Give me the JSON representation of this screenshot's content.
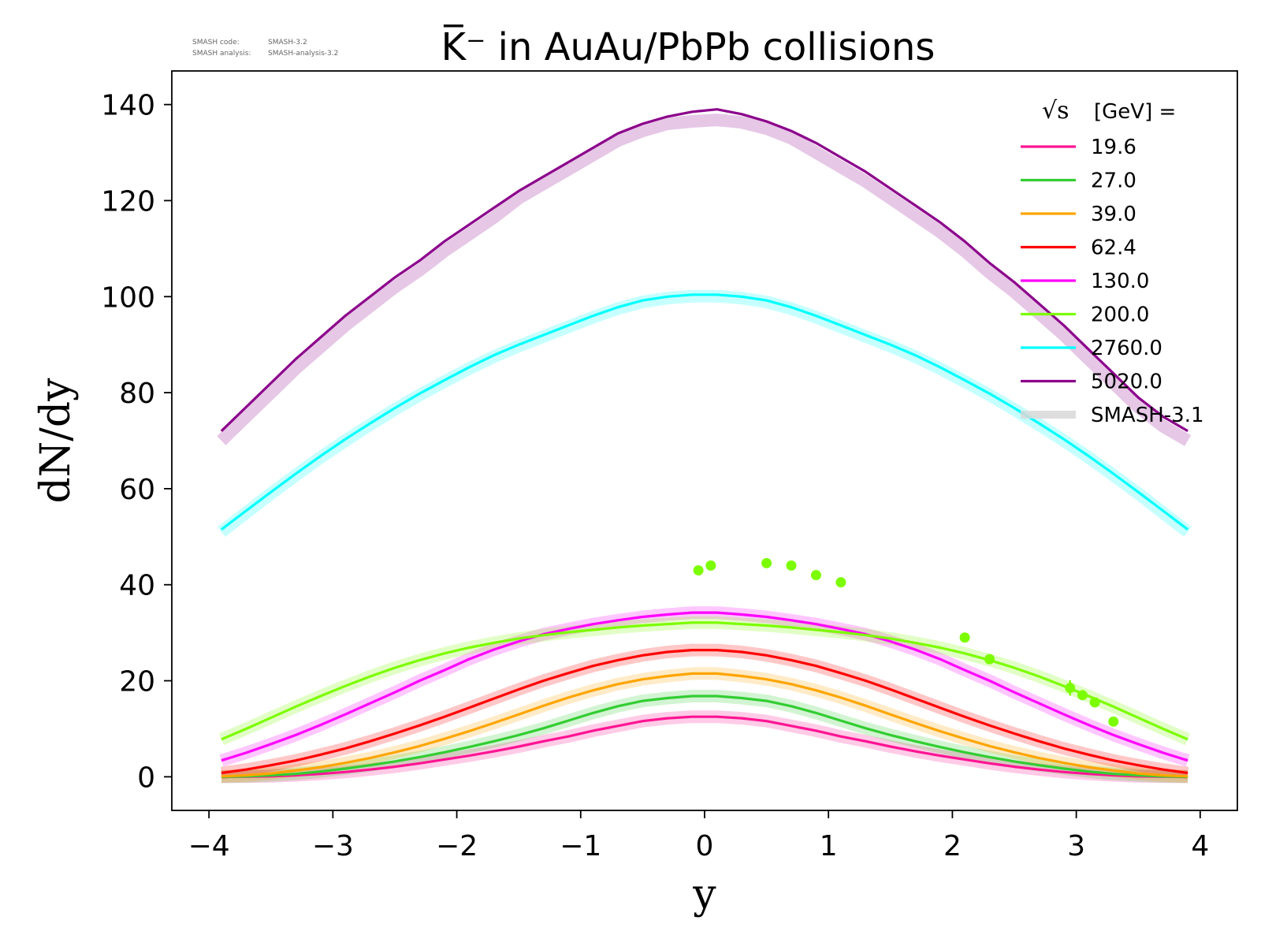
{
  "meta": {
    "code_label": "SMASH code:",
    "code_value": "SMASH-3.2",
    "analysis_label": "SMASH analysis:",
    "analysis_value": "SMASH-analysis-3.2"
  },
  "chart_data": {
    "type": "line",
    "title": "K̅⁻ in AuAu/PbPb collisions",
    "xlabel": "y",
    "ylabel": "dN/dy",
    "xlim": [
      -4.3,
      4.3
    ],
    "ylim": [
      -7,
      147
    ],
    "x_ticks": [
      -4,
      -3,
      -2,
      -1,
      0,
      1,
      2,
      3,
      4
    ],
    "x_tick_labels": [
      "−4",
      "−3",
      "−2",
      "−1",
      "0",
      "1",
      "2",
      "3",
      "4"
    ],
    "y_ticks": [
      0,
      20,
      40,
      60,
      80,
      100,
      120,
      140
    ],
    "y_tick_labels": [
      "0",
      "20",
      "40",
      "60",
      "80",
      "100",
      "120",
      "140"
    ],
    "grid": false,
    "legend_position": "top-right",
    "legend_title": "[GeV] =",
    "legend_title_symbol": "√s",
    "x": [
      -3.9,
      -3.7,
      -3.5,
      -3.3,
      -3.1,
      -2.9,
      -2.7,
      -2.5,
      -2.3,
      -2.1,
      -1.9,
      -1.7,
      -1.5,
      -1.3,
      -1.1,
      -0.9,
      -0.7,
      -0.5,
      -0.3,
      -0.1,
      0.1,
      0.3,
      0.5,
      0.7,
      0.9,
      1.1,
      1.3,
      1.5,
      1.7,
      1.9,
      2.1,
      2.3,
      2.5,
      2.7,
      2.9,
      3.1,
      3.3,
      3.5,
      3.7,
      3.9
    ],
    "series": [
      {
        "name": "19.6",
        "color": "#ff1493",
        "values": [
          0.0,
          0.05,
          0.1,
          0.3,
          0.6,
          1.0,
          1.5,
          2.1,
          2.8,
          3.6,
          4.4,
          5.3,
          6.3,
          7.4,
          8.4,
          9.6,
          10.6,
          11.6,
          12.2,
          12.5,
          12.5,
          12.2,
          11.6,
          10.6,
          9.6,
          8.4,
          7.4,
          6.3,
          5.3,
          4.4,
          3.6,
          2.8,
          2.1,
          1.5,
          1.0,
          0.6,
          0.3,
          0.1,
          0.05,
          0.0
        ]
      },
      {
        "name": "27.0",
        "color": "#32cd32",
        "values": [
          0.0,
          0.1,
          0.3,
          0.6,
          1.1,
          1.7,
          2.4,
          3.2,
          4.1,
          5.1,
          6.2,
          7.4,
          8.7,
          10.1,
          11.7,
          13.3,
          14.7,
          15.8,
          16.4,
          16.8,
          16.8,
          16.4,
          15.8,
          14.7,
          13.3,
          11.7,
          10.1,
          8.7,
          7.4,
          6.2,
          5.1,
          4.1,
          3.2,
          2.4,
          1.7,
          1.1,
          0.6,
          0.3,
          0.1,
          0.0
        ]
      },
      {
        "name": "39.0",
        "color": "#ffa500",
        "values": [
          0.1,
          0.3,
          0.7,
          1.3,
          2.0,
          2.9,
          3.9,
          5.1,
          6.4,
          7.9,
          9.5,
          11.2,
          13.0,
          14.8,
          16.5,
          18.0,
          19.3,
          20.3,
          21.0,
          21.5,
          21.5,
          21.0,
          20.3,
          19.3,
          18.0,
          16.5,
          14.8,
          13.0,
          11.2,
          9.5,
          7.9,
          6.4,
          5.1,
          3.9,
          2.9,
          2.0,
          1.3,
          0.7,
          0.3,
          0.1
        ]
      },
      {
        "name": "62.4",
        "color": "#ff0000",
        "values": [
          0.8,
          1.5,
          2.4,
          3.4,
          4.6,
          5.9,
          7.4,
          9.0,
          10.7,
          12.5,
          14.4,
          16.3,
          18.2,
          20.0,
          21.6,
          23.1,
          24.3,
          25.3,
          26.0,
          26.4,
          26.4,
          26.0,
          25.3,
          24.3,
          23.1,
          21.6,
          20.0,
          18.2,
          16.3,
          14.4,
          12.5,
          10.7,
          9.0,
          7.4,
          5.9,
          4.6,
          3.4,
          2.4,
          1.5,
          0.8
        ]
      },
      {
        "name": "130.0",
        "color": "#ff00ff",
        "values": [
          3.4,
          5.0,
          6.8,
          8.7,
          10.8,
          13.0,
          15.3,
          17.6,
          20.0,
          22.2,
          24.5,
          26.5,
          28.2,
          29.7,
          30.8,
          31.8,
          32.6,
          33.3,
          33.8,
          34.2,
          34.2,
          33.8,
          33.3,
          32.6,
          31.8,
          30.8,
          29.7,
          28.2,
          26.5,
          24.5,
          22.2,
          20.0,
          17.6,
          15.3,
          13.0,
          10.8,
          8.7,
          6.8,
          5.0,
          3.4
        ]
      },
      {
        "name": "200.0",
        "color": "#7cfc00",
        "values": [
          7.8,
          10.0,
          12.3,
          14.6,
          16.8,
          18.9,
          20.9,
          22.7,
          24.3,
          25.7,
          26.9,
          27.9,
          28.8,
          29.5,
          30.1,
          30.6,
          31.1,
          31.5,
          31.8,
          32.1,
          32.1,
          31.8,
          31.5,
          31.1,
          30.6,
          30.1,
          29.5,
          28.8,
          27.9,
          26.9,
          25.7,
          24.3,
          22.7,
          20.9,
          18.9,
          16.8,
          14.6,
          12.3,
          10.0,
          7.8
        ]
      },
      {
        "name": "2760.0",
        "color": "#00ffff",
        "values": [
          51.5,
          55.4,
          59.3,
          63.1,
          66.8,
          70.3,
          73.6,
          76.8,
          79.8,
          82.6,
          85.3,
          87.8,
          90.0,
          92.0,
          94.0,
          96.0,
          97.8,
          99.2,
          100.0,
          100.4,
          100.4,
          100.0,
          99.2,
          97.8,
          96.0,
          94.0,
          92.0,
          90.0,
          87.8,
          85.3,
          82.6,
          79.8,
          76.8,
          73.6,
          70.3,
          66.8,
          63.1,
          59.3,
          55.4,
          51.5
        ]
      },
      {
        "name": "5020.0",
        "color": "#8b008b",
        "values": [
          72.0,
          77.0,
          82.0,
          87.0,
          91.5,
          96.0,
          100.0,
          104.0,
          107.5,
          111.5,
          115.0,
          118.5,
          122.0,
          125.0,
          128.0,
          131.0,
          134.0,
          136.0,
          137.5,
          138.5,
          139.0,
          138.0,
          136.5,
          134.5,
          132.0,
          129.0,
          126.0,
          122.5,
          119.0,
          115.5,
          111.5,
          107.0,
          103.0,
          98.5,
          94.0,
          89.0,
          84.0,
          79.0,
          75.0,
          72.0
        ]
      },
      {
        "name": "SMASH-3.1",
        "color": "#d8d8d8",
        "role": "reference",
        "bands": [
          {
            "values": [
              0.0,
              0.05,
              0.1,
              0.3,
              0.6,
              1.0,
              1.5,
              2.1,
              2.8,
              3.6,
              4.4,
              5.3,
              6.3,
              7.4,
              8.4,
              9.6,
              10.6,
              11.6,
              12.2,
              12.5,
              12.5,
              12.2,
              11.6,
              10.6,
              9.6,
              8.4,
              7.4,
              6.3,
              5.3,
              4.4,
              3.6,
              2.8,
              2.1,
              1.5,
              1.0,
              0.6,
              0.3,
              0.1,
              0.05,
              0.0
            ],
            "tint": "#ff1493"
          },
          {
            "values": [
              0.0,
              0.1,
              0.3,
              0.6,
              1.1,
              1.7,
              2.4,
              3.2,
              4.1,
              5.1,
              6.2,
              7.4,
              8.7,
              10.1,
              11.7,
              13.3,
              14.7,
              15.8,
              16.4,
              16.8,
              16.8,
              16.4,
              15.8,
              14.7,
              13.3,
              11.7,
              10.1,
              8.7,
              7.4,
              6.2,
              5.1,
              4.1,
              3.2,
              2.4,
              1.7,
              1.1,
              0.6,
              0.3,
              0.1,
              0.0
            ],
            "tint": "#32cd32"
          },
          {
            "values": [
              0.1,
              0.3,
              0.7,
              1.3,
              2.0,
              2.9,
              3.9,
              5.1,
              6.4,
              7.9,
              9.5,
              11.2,
              13.0,
              14.8,
              16.5,
              18.0,
              19.3,
              20.3,
              21.0,
              21.5,
              21.5,
              21.0,
              20.3,
              19.3,
              18.0,
              16.5,
              14.8,
              13.0,
              11.2,
              9.5,
              7.9,
              6.4,
              5.1,
              3.9,
              2.9,
              2.0,
              1.3,
              0.7,
              0.3,
              0.1
            ],
            "tint": "#ffa500"
          },
          {
            "values": [
              0.8,
              1.5,
              2.4,
              3.4,
              4.6,
              5.9,
              7.4,
              9.0,
              10.7,
              12.5,
              14.4,
              16.3,
              18.2,
              20.0,
              21.6,
              23.1,
              24.3,
              25.3,
              26.0,
              26.4,
              26.4,
              26.0,
              25.3,
              24.3,
              23.1,
              21.6,
              20.0,
              18.2,
              16.3,
              14.4,
              12.5,
              10.7,
              9.0,
              7.4,
              5.9,
              4.6,
              3.4,
              2.4,
              1.5,
              0.8
            ],
            "tint": "#ff0000"
          },
          {
            "values": [
              3.4,
              5.0,
              6.8,
              8.7,
              10.8,
              13.0,
              15.3,
              17.6,
              20.0,
              22.2,
              24.5,
              26.5,
              28.2,
              29.7,
              30.8,
              31.8,
              32.6,
              33.3,
              33.8,
              34.2,
              34.2,
              33.8,
              33.3,
              32.6,
              31.8,
              30.8,
              29.7,
              28.2,
              26.5,
              24.5,
              22.2,
              20.0,
              17.6,
              15.3,
              13.0,
              10.8,
              8.7,
              6.8,
              5.0,
              3.4
            ],
            "tint": "#ff00ff"
          },
          {
            "values": [
              7.8,
              10.0,
              12.3,
              14.6,
              16.8,
              18.9,
              20.9,
              22.7,
              24.3,
              25.7,
              26.9,
              27.9,
              28.8,
              29.5,
              30.1,
              30.6,
              31.1,
              31.5,
              31.8,
              32.1,
              32.1,
              31.8,
              31.5,
              31.1,
              30.6,
              30.1,
              29.5,
              28.8,
              27.9,
              26.9,
              25.7,
              24.3,
              22.7,
              20.9,
              18.9,
              16.8,
              14.6,
              12.3,
              10.0,
              7.8
            ],
            "tint": "#7cfc00"
          },
          {
            "values": [
              51.0,
              55.0,
              59.0,
              62.8,
              66.5,
              70.0,
              73.3,
              76.5,
              79.5,
              82.3,
              85.0,
              87.5,
              89.7,
              91.7,
              93.7,
              95.7,
              97.5,
              98.9,
              99.7,
              100.1,
              100.1,
              99.7,
              98.9,
              97.5,
              95.7,
              93.7,
              91.7,
              89.7,
              87.5,
              85.0,
              82.3,
              79.5,
              76.5,
              73.3,
              70.0,
              66.5,
              62.8,
              59.0,
              55.0,
              51.0
            ],
            "tint": "#00ffff"
          },
          {
            "values": [
              70.0,
              75.0,
              80.0,
              85.0,
              89.5,
              94.0,
              98.0,
              102.0,
              105.5,
              109.5,
              113.0,
              116.5,
              120.5,
              123.5,
              126.5,
              129.5,
              132.5,
              134.5,
              136.0,
              136.5,
              136.8,
              136.3,
              135.0,
              133.0,
              130.0,
              127.0,
              124.0,
              120.5,
              117.0,
              113.5,
              109.5,
              105.0,
              101.0,
              96.5,
              92.0,
              87.0,
              82.0,
              77.0,
              73.0,
              70.0
            ],
            "tint": "#8b008b"
          }
        ]
      },
      {
        "name": "200.0 data",
        "color": "#7cfc00",
        "role": "points",
        "in_legend": false,
        "x": [
          -0.05,
          0.05,
          0.5,
          0.7,
          0.9,
          1.1,
          2.1,
          2.3,
          2.95,
          3.05,
          3.15,
          3.3
        ],
        "values": [
          43.0,
          44.0,
          44.5,
          44.0,
          42.0,
          40.5,
          29.0,
          24.5,
          18.5,
          17.0,
          15.5,
          11.5
        ],
        "errors": [
          0.6,
          0.6,
          0.6,
          0.6,
          0.6,
          0.6,
          0.8,
          0.8,
          1.6,
          0.8,
          0.8,
          0.8
        ]
      }
    ]
  }
}
